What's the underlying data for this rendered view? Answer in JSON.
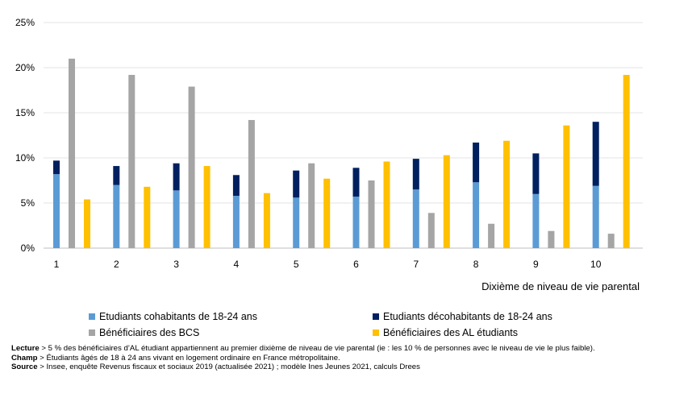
{
  "chart_data": {
    "type": "bar",
    "categories": [
      "1",
      "2",
      "3",
      "4",
      "5",
      "6",
      "7",
      "8",
      "9",
      "10"
    ],
    "xlabel": "Dixième de niveau de vie parental",
    "ylabel": "",
    "ylim": [
      0,
      25
    ],
    "yticks": [
      "0%",
      "5%",
      "10%",
      "15%",
      "20%",
      "25%"
    ],
    "grid": true,
    "legend_position": "bottom",
    "stacked_group": [
      "Etudiants cohabitants de 18-24 ans",
      "Etudiants décohabitants de 18-24 ans"
    ],
    "series": [
      {
        "name": "Etudiants cohabitants de 18-24 ans",
        "color": "#5b9bd5",
        "values": [
          8.2,
          7.0,
          6.4,
          5.8,
          5.6,
          5.7,
          6.5,
          7.3,
          6.0,
          6.9
        ]
      },
      {
        "name": "Etudiants décohabitants de 18-24 ans",
        "color": "#002060",
        "values": [
          1.5,
          2.1,
          3.0,
          2.3,
          3.0,
          3.2,
          3.4,
          4.4,
          4.5,
          7.1
        ]
      },
      {
        "name": "Bénéficiaires des BCS",
        "color": "#a5a5a5",
        "values": [
          21.0,
          19.2,
          17.9,
          14.2,
          9.4,
          7.5,
          3.9,
          2.7,
          1.9,
          1.6
        ]
      },
      {
        "name": "Bénéficiaires des AL étudiants",
        "color": "#ffc000",
        "values": [
          5.4,
          6.8,
          9.1,
          6.1,
          7.7,
          9.6,
          10.3,
          11.9,
          13.6,
          19.2
        ]
      }
    ]
  },
  "notes": [
    {
      "label": "Lecture",
      "text": " > 5 % des bénéficiaires d’AL étudiant appartiennent au premier dixième de niveau de vie parental (ie : les 10 % de personnes avec le niveau de vie le plus faible)."
    },
    {
      "label": "Champ",
      "text": " > Étudiants âgés de 18 à 24 ans vivant en logement ordinaire en France métropolitaine."
    },
    {
      "label": "Source",
      "text": " > Insee, enquête Revenus fiscaux et sociaux 2019 (actualisée 2021) ; modèle Ines Jeunes 2021, calculs Drees"
    }
  ]
}
